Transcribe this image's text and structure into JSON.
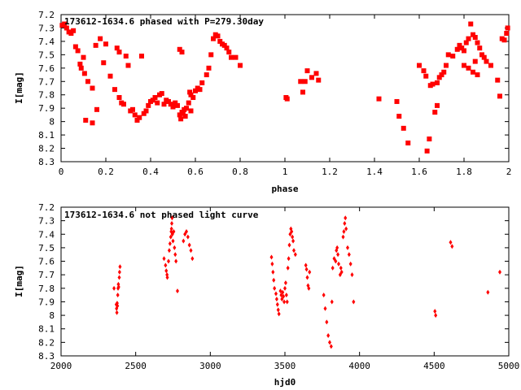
{
  "chart_data": [
    {
      "type": "scatter",
      "title": "173612-1634.6 phased with P=279.30day",
      "xlabel": "phase",
      "ylabel": "I[mag]",
      "xlim": [
        0,
        2
      ],
      "ylim": [
        7.2,
        8.3
      ],
      "y_inverted": true,
      "grid": false,
      "marker": "filled-square",
      "color": "#ff0000",
      "xticks": [
        0,
        0.2,
        0.4,
        0.6,
        0.8,
        1,
        1.2,
        1.4,
        1.6,
        1.8,
        2
      ],
      "xtick_labels": [
        "0",
        "0.2",
        "0.4",
        "0.6",
        "0.8",
        "1",
        "1.2",
        "1.4",
        "1.6",
        "1.8",
        "2"
      ],
      "yticks": [
        7.2,
        7.3,
        7.4,
        7.5,
        7.6,
        7.7,
        7.8,
        7.9,
        8.0,
        8.1,
        8.2,
        8.3
      ],
      "ytick_labels": [
        "7.2",
        "7.3",
        "7.4",
        "7.5",
        "7.6",
        "7.7",
        "7.8",
        "7.9",
        "8",
        "8.1",
        "8.2",
        "8.3"
      ],
      "points": [
        [
          0.005,
          7.28
        ],
        [
          0.015,
          7.27
        ],
        [
          0.025,
          7.3
        ],
        [
          0.035,
          7.33
        ],
        [
          0.045,
          7.34
        ],
        [
          0.055,
          7.32
        ],
        [
          0.065,
          7.44
        ],
        [
          0.075,
          7.47
        ],
        [
          0.085,
          7.57
        ],
        [
          0.09,
          7.6
        ],
        [
          0.1,
          7.52
        ],
        [
          0.105,
          7.64
        ],
        [
          0.12,
          7.7
        ],
        [
          0.14,
          7.75
        ],
        [
          0.11,
          7.99
        ],
        [
          0.14,
          8.01
        ],
        [
          0.16,
          7.91
        ],
        [
          0.155,
          7.43
        ],
        [
          0.175,
          7.38
        ],
        [
          0.19,
          7.56
        ],
        [
          0.2,
          7.42
        ],
        [
          0.22,
          7.66
        ],
        [
          0.24,
          7.76
        ],
        [
          0.25,
          7.45
        ],
        [
          0.26,
          7.48
        ],
        [
          0.26,
          7.82
        ],
        [
          0.27,
          7.86
        ],
        [
          0.28,
          7.87
        ],
        [
          0.29,
          7.51
        ],
        [
          0.3,
          7.58
        ],
        [
          0.31,
          7.92
        ],
        [
          0.32,
          7.91
        ],
        [
          0.33,
          7.95
        ],
        [
          0.34,
          7.99
        ],
        [
          0.35,
          7.97
        ],
        [
          0.36,
          7.51
        ],
        [
          0.37,
          7.94
        ],
        [
          0.38,
          7.92
        ],
        [
          0.39,
          7.88
        ],
        [
          0.4,
          7.85
        ],
        [
          0.41,
          7.84
        ],
        [
          0.42,
          7.82
        ],
        [
          0.43,
          7.86
        ],
        [
          0.44,
          7.8
        ],
        [
          0.45,
          7.79
        ],
        [
          0.46,
          7.87
        ],
        [
          0.47,
          7.84
        ],
        [
          0.48,
          7.85
        ],
        [
          0.49,
          7.87
        ],
        [
          0.5,
          7.89
        ],
        [
          0.51,
          7.86
        ],
        [
          0.52,
          7.88
        ],
        [
          0.53,
          7.95
        ],
        [
          0.535,
          7.98
        ],
        [
          0.54,
          7.93
        ],
        [
          0.545,
          7.94
        ],
        [
          0.55,
          7.91
        ],
        [
          0.555,
          7.96
        ],
        [
          0.56,
          7.9
        ],
        [
          0.57,
          7.86
        ],
        [
          0.575,
          7.78
        ],
        [
          0.58,
          7.8
        ],
        [
          0.59,
          7.82
        ],
        [
          0.6,
          7.77
        ],
        [
          0.61,
          7.75
        ],
        [
          0.62,
          7.76
        ],
        [
          0.53,
          7.46
        ],
        [
          0.54,
          7.48
        ],
        [
          0.58,
          7.92
        ],
        [
          0.63,
          7.71
        ],
        [
          0.65,
          7.65
        ],
        [
          0.66,
          7.6
        ],
        [
          0.67,
          7.5
        ],
        [
          0.68,
          7.38
        ],
        [
          0.69,
          7.35
        ],
        [
          0.7,
          7.36
        ],
        [
          0.71,
          7.4
        ],
        [
          0.72,
          7.42
        ],
        [
          0.73,
          7.43
        ],
        [
          0.74,
          7.45
        ],
        [
          0.75,
          7.48
        ],
        [
          0.76,
          7.52
        ],
        [
          0.78,
          7.52
        ],
        [
          0.8,
          7.58
        ],
        [
          1.005,
          7.82
        ],
        [
          1.01,
          7.83
        ],
        [
          1.07,
          7.7
        ],
        [
          1.08,
          7.78
        ],
        [
          1.09,
          7.7
        ],
        [
          1.1,
          7.62
        ],
        [
          1.12,
          7.67
        ],
        [
          1.14,
          7.64
        ],
        [
          1.15,
          7.69
        ],
        [
          1.42,
          7.83
        ],
        [
          1.5,
          7.85
        ],
        [
          1.51,
          7.96
        ],
        [
          1.53,
          8.05
        ],
        [
          1.55,
          8.16
        ],
        [
          1.6,
          7.58
        ],
        [
          1.62,
          7.62
        ],
        [
          1.63,
          7.66
        ],
        [
          1.635,
          8.22
        ],
        [
          1.645,
          8.13
        ],
        [
          1.65,
          7.73
        ],
        [
          1.66,
          7.72
        ],
        [
          1.67,
          7.93
        ],
        [
          1.68,
          7.88
        ],
        [
          1.68,
          7.71
        ],
        [
          1.69,
          7.67
        ],
        [
          1.7,
          7.65
        ],
        [
          1.71,
          7.63
        ],
        [
          1.72,
          7.58
        ],
        [
          1.73,
          7.5
        ],
        [
          1.75,
          7.51
        ],
        [
          1.77,
          7.46
        ],
        [
          1.78,
          7.43
        ],
        [
          1.79,
          7.45
        ],
        [
          1.8,
          7.47
        ],
        [
          1.81,
          7.41
        ],
        [
          1.82,
          7.38
        ],
        [
          1.83,
          7.27
        ],
        [
          1.84,
          7.35
        ],
        [
          1.85,
          7.37
        ],
        [
          1.86,
          7.41
        ],
        [
          1.87,
          7.45
        ],
        [
          1.88,
          7.5
        ],
        [
          1.89,
          7.52
        ],
        [
          1.9,
          7.55
        ],
        [
          1.92,
          7.58
        ],
        [
          1.95,
          7.69
        ],
        [
          1.96,
          7.81
        ],
        [
          1.97,
          7.38
        ],
        [
          1.98,
          7.39
        ],
        [
          1.99,
          7.34
        ],
        [
          1.995,
          7.3
        ],
        [
          1.8,
          7.58
        ],
        [
          1.82,
          7.6
        ],
        [
          1.84,
          7.63
        ],
        [
          1.86,
          7.65
        ],
        [
          1.85,
          7.55
        ]
      ]
    },
    {
      "type": "scatter",
      "title": "173612-1634.6 not phased light curve",
      "xlabel": "hjd0",
      "ylabel": "I[mag]",
      "xlim": [
        2000,
        5000
      ],
      "ylim": [
        7.2,
        8.3
      ],
      "y_inverted": true,
      "grid": false,
      "marker": "small-diamond",
      "color": "#ff0000",
      "xticks": [
        2000,
        2500,
        3000,
        3500,
        4000,
        4500,
        5000
      ],
      "xtick_labels": [
        "2000",
        "2500",
        "3000",
        "3500",
        "4000",
        "4500",
        "5000"
      ],
      "yticks": [
        7.2,
        7.3,
        7.4,
        7.5,
        7.6,
        7.7,
        7.8,
        7.9,
        8.0,
        8.1,
        8.2,
        8.3
      ],
      "ytick_labels": [
        "7.2",
        "7.3",
        "7.4",
        "7.5",
        "7.6",
        "7.7",
        "7.8",
        "7.9",
        "8",
        "8.1",
        "8.2",
        "8.3"
      ],
      "points": [
        [
          2355,
          7.8
        ],
        [
          2370,
          7.92
        ],
        [
          2372,
          7.95
        ],
        [
          2374,
          7.98
        ],
        [
          2376,
          7.91
        ],
        [
          2378,
          7.93
        ],
        [
          2380,
          7.85
        ],
        [
          2382,
          7.8
        ],
        [
          2384,
          7.77
        ],
        [
          2386,
          7.79
        ],
        [
          2390,
          7.72
        ],
        [
          2392,
          7.68
        ],
        [
          2395,
          7.64
        ],
        [
          2690,
          7.58
        ],
        [
          2700,
          7.63
        ],
        [
          2705,
          7.67
        ],
        [
          2710,
          7.7
        ],
        [
          2712,
          7.72
        ],
        [
          2720,
          7.6
        ],
        [
          2725,
          7.52
        ],
        [
          2730,
          7.47
        ],
        [
          2735,
          7.42
        ],
        [
          2738,
          7.38
        ],
        [
          2740,
          7.36
        ],
        [
          2742,
          7.32
        ],
        [
          2744,
          7.28
        ],
        [
          2746,
          7.4
        ],
        [
          2750,
          7.45
        ],
        [
          2755,
          7.38
        ],
        [
          2760,
          7.5
        ],
        [
          2765,
          7.55
        ],
        [
          2770,
          7.6
        ],
        [
          2780,
          7.82
        ],
        [
          2820,
          7.45
        ],
        [
          2830,
          7.4
        ],
        [
          2840,
          7.38
        ],
        [
          2850,
          7.42
        ],
        [
          2860,
          7.48
        ],
        [
          2870,
          7.52
        ],
        [
          2880,
          7.58
        ],
        [
          3410,
          7.57
        ],
        [
          3415,
          7.62
        ],
        [
          3420,
          7.68
        ],
        [
          3425,
          7.74
        ],
        [
          3430,
          7.8
        ],
        [
          3440,
          7.84
        ],
        [
          3445,
          7.88
        ],
        [
          3450,
          7.92
        ],
        [
          3455,
          7.96
        ],
        [
          3460,
          7.99
        ],
        [
          3470,
          7.82
        ],
        [
          3475,
          7.85
        ],
        [
          3480,
          7.88
        ],
        [
          3485,
          7.83
        ],
        [
          3490,
          7.86
        ],
        [
          3495,
          7.9
        ],
        [
          3500,
          7.8
        ],
        [
          3505,
          7.76
        ],
        [
          3510,
          7.85
        ],
        [
          3515,
          7.9
        ],
        [
          3520,
          7.65
        ],
        [
          3525,
          7.58
        ],
        [
          3530,
          7.48
        ],
        [
          3535,
          7.4
        ],
        [
          3540,
          7.36
        ],
        [
          3545,
          7.38
        ],
        [
          3550,
          7.42
        ],
        [
          3555,
          7.45
        ],
        [
          3560,
          7.52
        ],
        [
          3570,
          7.55
        ],
        [
          3640,
          7.63
        ],
        [
          3645,
          7.66
        ],
        [
          3650,
          7.72
        ],
        [
          3655,
          7.78
        ],
        [
          3660,
          7.8
        ],
        [
          3665,
          7.68
        ],
        [
          3760,
          7.85
        ],
        [
          3770,
          7.95
        ],
        [
          3780,
          8.05
        ],
        [
          3790,
          8.15
        ],
        [
          3800,
          8.2
        ],
        [
          3810,
          8.23
        ],
        [
          3815,
          7.9
        ],
        [
          3820,
          7.65
        ],
        [
          3830,
          7.58
        ],
        [
          3840,
          7.6
        ],
        [
          3845,
          7.52
        ],
        [
          3850,
          7.5
        ],
        [
          3855,
          7.55
        ],
        [
          3860,
          7.62
        ],
        [
          3870,
          7.7
        ],
        [
          3875,
          7.65
        ],
        [
          3880,
          7.68
        ],
        [
          3890,
          7.42
        ],
        [
          3895,
          7.38
        ],
        [
          3900,
          7.32
        ],
        [
          3905,
          7.28
        ],
        [
          3910,
          7.36
        ],
        [
          3920,
          7.5
        ],
        [
          3930,
          7.55
        ],
        [
          3940,
          7.62
        ],
        [
          3950,
          7.7
        ],
        [
          3960,
          7.9
        ],
        [
          4505,
          7.97
        ],
        [
          4510,
          8.0
        ],
        [
          4610,
          7.46
        ],
        [
          4620,
          7.49
        ],
        [
          4860,
          7.83
        ],
        [
          4940,
          7.68
        ]
      ]
    }
  ]
}
